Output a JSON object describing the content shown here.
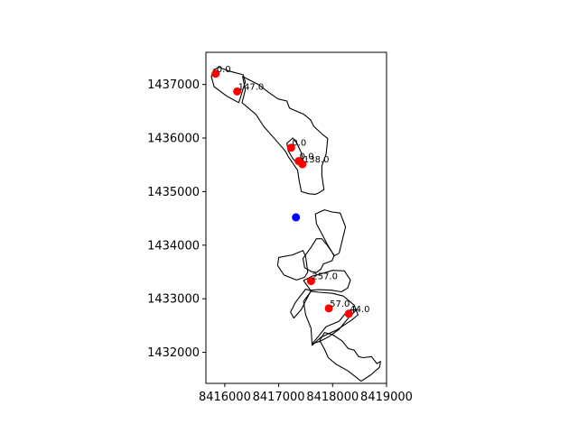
{
  "chart_data": {
    "type": "scatter",
    "title": "",
    "xlabel": "",
    "ylabel": "",
    "xlim": [
      8415650,
      8419000
    ],
    "ylim": [
      1431420,
      1437600
    ],
    "grid": false,
    "legend": "none",
    "x_ticks": [
      {
        "value": 8416000,
        "label": "8416000"
      },
      {
        "value": 8417000,
        "label": "8417000"
      },
      {
        "value": 8418000,
        "label": "8418000"
      },
      {
        "value": 8419000,
        "label": "8419000"
      }
    ],
    "y_ticks": [
      {
        "value": 1432000,
        "label": "1432000"
      },
      {
        "value": 1433000,
        "label": "1433000"
      },
      {
        "value": 1434000,
        "label": "1434000"
      },
      {
        "value": 1435000,
        "label": "1435000"
      },
      {
        "value": 1436000,
        "label": "1436000"
      },
      {
        "value": 1437000,
        "label": "1437000"
      }
    ],
    "series": [
      {
        "color": "#ff0000",
        "points": [
          {
            "x": 8415830,
            "y": 1437200,
            "label": "0.0"
          },
          {
            "x": 8416230,
            "y": 1436870,
            "label": "147.0"
          },
          {
            "x": 8417230,
            "y": 1435820,
            "label": "0.0"
          },
          {
            "x": 8417370,
            "y": 1435570,
            "label": "0.0"
          },
          {
            "x": 8417440,
            "y": 1435510,
            "label": "138.0"
          },
          {
            "x": 8417600,
            "y": 1433330,
            "label": "257.0"
          },
          {
            "x": 8417930,
            "y": 1432820,
            "label": "57.0"
          },
          {
            "x": 8418300,
            "y": 1432720,
            "label": "44.0"
          }
        ]
      },
      {
        "color": "#0000ff",
        "points": [
          {
            "x": 8417320,
            "y": 1434520,
            "label": ""
          }
        ]
      }
    ],
    "polygons": [
      [
        [
          8415800,
          1437280
        ],
        [
          8415900,
          1437320
        ],
        [
          8416080,
          1437250
        ],
        [
          8416340,
          1437180
        ],
        [
          8416380,
          1437050
        ],
        [
          8416320,
          1436850
        ],
        [
          8416260,
          1436660
        ],
        [
          8416040,
          1436780
        ],
        [
          8415800,
          1436960
        ],
        [
          8415750,
          1437150
        ]
      ],
      [
        [
          8416330,
          1437150
        ],
        [
          8416620,
          1437000
        ],
        [
          8416830,
          1436840
        ],
        [
          8416990,
          1436730
        ],
        [
          8417150,
          1436690
        ],
        [
          8417200,
          1436560
        ],
        [
          8417330,
          1436500
        ],
        [
          8417470,
          1436440
        ],
        [
          8417590,
          1436340
        ],
        [
          8417650,
          1436220
        ],
        [
          8417810,
          1436070
        ],
        [
          8417910,
          1435990
        ],
        [
          8417880,
          1435700
        ],
        [
          8417800,
          1435480
        ],
        [
          8417800,
          1435300
        ],
        [
          8417840,
          1435040
        ],
        [
          8417750,
          1434980
        ],
        [
          8417680,
          1434950
        ],
        [
          8417560,
          1434960
        ],
        [
          8417420,
          1435000
        ],
        [
          8417380,
          1435200
        ],
        [
          8417350,
          1435400
        ],
        [
          8417180,
          1435650
        ],
        [
          8417120,
          1435760
        ],
        [
          8416930,
          1435980
        ],
        [
          8416720,
          1436220
        ],
        [
          8416580,
          1436440
        ],
        [
          8416320,
          1436660
        ],
        [
          8416380,
          1436900
        ]
      ],
      [
        [
          8417150,
          1435900
        ],
        [
          8417260,
          1436000
        ],
        [
          8417340,
          1435900
        ],
        [
          8417420,
          1435720
        ],
        [
          8417460,
          1435550
        ],
        [
          8417360,
          1435500
        ],
        [
          8417260,
          1435620
        ],
        [
          8417180,
          1435760
        ]
      ],
      [
        [
          8417680,
          1434580
        ],
        [
          8417850,
          1434660
        ],
        [
          8417990,
          1434620
        ],
        [
          8418140,
          1434600
        ],
        [
          8418240,
          1434340
        ],
        [
          8418120,
          1433850
        ],
        [
          8418030,
          1433800
        ],
        [
          8417900,
          1434020
        ],
        [
          8417790,
          1434230
        ],
        [
          8417700,
          1434400
        ]
      ],
      [
        [
          8417800,
          1434120
        ],
        [
          8417700,
          1434120
        ],
        [
          8417600,
          1433960
        ],
        [
          8417450,
          1433750
        ],
        [
          8417480,
          1433580
        ],
        [
          8417600,
          1433510
        ],
        [
          8417700,
          1433490
        ],
        [
          8417780,
          1433550
        ],
        [
          8417830,
          1433650
        ],
        [
          8417990,
          1433710
        ],
        [
          8418030,
          1433810
        ],
        [
          8417900,
          1434000
        ]
      ],
      [
        [
          8417450,
          1433900
        ],
        [
          8417500,
          1433790
        ],
        [
          8417540,
          1433500
        ],
        [
          8417480,
          1433400
        ],
        [
          8417330,
          1433350
        ],
        [
          8417100,
          1433440
        ],
        [
          8416980,
          1433620
        ],
        [
          8417000,
          1433770
        ],
        [
          8417260,
          1433820
        ]
      ],
      [
        [
          8417460,
          1433340
        ],
        [
          8417590,
          1433160
        ],
        [
          8417750,
          1433170
        ],
        [
          8417980,
          1433160
        ],
        [
          8418160,
          1433130
        ],
        [
          8418280,
          1433200
        ],
        [
          8418330,
          1433350
        ],
        [
          8418220,
          1433520
        ],
        [
          8418000,
          1433530
        ],
        [
          8417800,
          1433470
        ],
        [
          8417620,
          1433420
        ]
      ],
      [
        [
          8417500,
          1433180
        ],
        [
          8417600,
          1433150
        ],
        [
          8417520,
          1433000
        ],
        [
          8417420,
          1432800
        ],
        [
          8417280,
          1432640
        ],
        [
          8417220,
          1432750
        ],
        [
          8417310,
          1432930
        ]
      ],
      [
        [
          8417620,
          1432160
        ],
        [
          8417730,
          1432290
        ],
        [
          8417880,
          1432480
        ],
        [
          8418120,
          1432580
        ],
        [
          8418280,
          1432780
        ],
        [
          8418450,
          1432800
        ],
        [
          8418300,
          1432650
        ],
        [
          8418120,
          1432430
        ],
        [
          8417930,
          1432290
        ],
        [
          8417750,
          1432200
        ]
      ],
      [
        [
          8417600,
          1433140
        ],
        [
          8417750,
          1433120
        ],
        [
          8418000,
          1433100
        ],
        [
          8418200,
          1433050
        ],
        [
          8418400,
          1432880
        ],
        [
          8418470,
          1432700
        ],
        [
          8418350,
          1432600
        ],
        [
          8418080,
          1432420
        ],
        [
          8417780,
          1432280
        ],
        [
          8417620,
          1432130
        ],
        [
          8417600,
          1432450
        ],
        [
          8417500,
          1432700
        ],
        [
          8417460,
          1432950
        ]
      ],
      [
        [
          8417850,
          1432370
        ],
        [
          8418000,
          1432330
        ],
        [
          8418180,
          1432210
        ],
        [
          8418290,
          1432070
        ],
        [
          8418400,
          1432040
        ],
        [
          8418480,
          1431920
        ],
        [
          8418570,
          1431900
        ],
        [
          8418720,
          1431920
        ],
        [
          8418820,
          1431790
        ],
        [
          8418890,
          1431830
        ],
        [
          8418870,
          1431720
        ],
        [
          8418710,
          1431580
        ],
        [
          8418530,
          1431460
        ],
        [
          8418290,
          1431650
        ],
        [
          8418060,
          1431780
        ],
        [
          8417920,
          1431900
        ],
        [
          8417850,
          1432060
        ],
        [
          8417760,
          1432220
        ]
      ]
    ]
  }
}
